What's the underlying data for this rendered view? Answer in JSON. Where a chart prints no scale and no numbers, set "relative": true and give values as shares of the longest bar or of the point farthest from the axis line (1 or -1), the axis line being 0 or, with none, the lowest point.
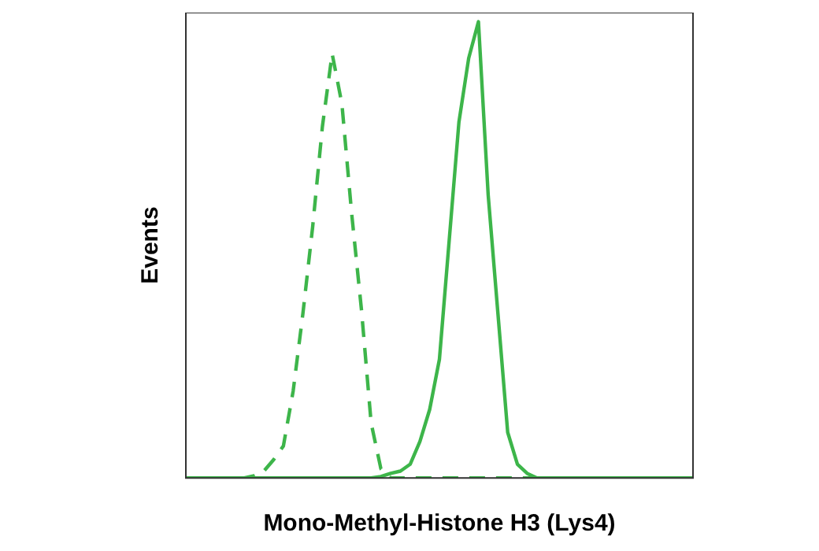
{
  "chart_data": {
    "type": "line",
    "relative": true,
    "xlabel": "Mono-Methyl-Histone H3 (Lys4)",
    "ylabel": "Events",
    "legend": false,
    "grid": false,
    "marker": "none",
    "categories": [
      null,
      null,
      null,
      null,
      null,
      null,
      null,
      null,
      null,
      null,
      null,
      null,
      null,
      null,
      null,
      null,
      null,
      null,
      null,
      null,
      null,
      null,
      null,
      null,
      null,
      null,
      null,
      null,
      null,
      null,
      null,
      null,
      null,
      null,
      null,
      null,
      null,
      null,
      null,
      null,
      null,
      null,
      null,
      null,
      null,
      null,
      null,
      null,
      null,
      null,
      null,
      null,
      null
    ],
    "series": [
      {
        "color": "#3db54a",
        "line_style": "dashed",
        "values": [
          0,
          0,
          0,
          0,
          0,
          0,
          0,
          0.005,
          0.015,
          0.04,
          0.07,
          0.19,
          0.36,
          0.55,
          0.77,
          0.93,
          0.82,
          0.58,
          0.37,
          0.12,
          0.02,
          0,
          0,
          0,
          0,
          0,
          0,
          0,
          0,
          0,
          0,
          0,
          0,
          0,
          0,
          0,
          0,
          0,
          0,
          0,
          0,
          0,
          0,
          0,
          0,
          0,
          0,
          0,
          0,
          0,
          0,
          0,
          0
        ]
      },
      {
        "color": "#3db54a",
        "line_style": "solid",
        "values": [
          0,
          0,
          0,
          0,
          0,
          0,
          0,
          0,
          0,
          0,
          0,
          0,
          0,
          0,
          0,
          0,
          0,
          0,
          0,
          0,
          0.003,
          0.01,
          0.015,
          0.03,
          0.08,
          0.15,
          0.26,
          0.52,
          0.78,
          0.92,
          1,
          0.62,
          0.36,
          0.1,
          0.03,
          0.01,
          0,
          0,
          0,
          0,
          0,
          0,
          0,
          0,
          0,
          0,
          0,
          0,
          0,
          0,
          0,
          0,
          0
        ]
      }
    ]
  }
}
